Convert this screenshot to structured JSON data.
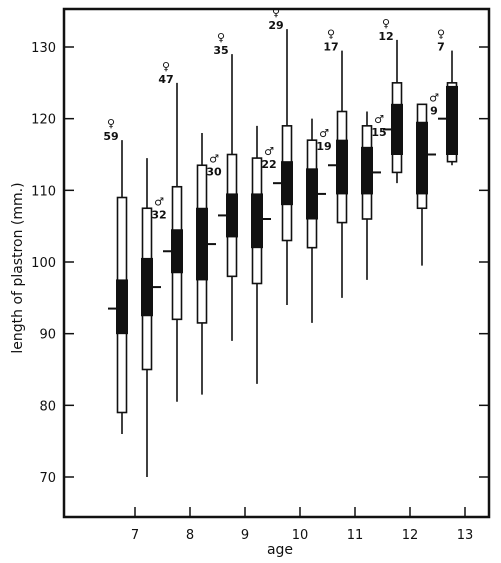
{
  "chart_data": {
    "type": "boxplot",
    "xlabel": "age",
    "ylabel": "length of plastron (mm.)",
    "ylim": [
      63,
      135
    ],
    "yticks": [
      70,
      80,
      90,
      100,
      110,
      120,
      130
    ],
    "xticks": [
      "7",
      "8",
      "9",
      "10",
      "11",
      "12",
      "13"
    ],
    "grid": false,
    "female_symbol": "♀",
    "male_symbol": "♂",
    "groups": [
      {
        "age": "7",
        "female": {
          "n": "59",
          "min": 76,
          "sd_low": 79,
          "se_low": 90,
          "mean": 93.5,
          "se_high": 97.5,
          "sd_high": 109,
          "max": 117
        },
        "male": {
          "n": "32",
          "min": 70,
          "sd_low": 85,
          "se_low": 92.5,
          "mean": 96.5,
          "se_high": 100.5,
          "sd_high": 107.5,
          "max": 114.5
        }
      },
      {
        "age": "8",
        "female": {
          "n": "47",
          "min": 80.5,
          "sd_low": 92,
          "se_low": 98.5,
          "mean": 101.5,
          "se_high": 104.5,
          "sd_high": 110.5,
          "max": 125
        },
        "male": {
          "n": "30",
          "min": 81.5,
          "sd_low": 91.5,
          "se_low": 97.5,
          "mean": 102.5,
          "se_high": 107.5,
          "sd_high": 113.5,
          "max": 118
        }
      },
      {
        "age": "9",
        "female": {
          "n": "35",
          "min": 89,
          "sd_low": 98,
          "se_low": 103.5,
          "mean": 106.5,
          "se_high": 109.5,
          "sd_high": 115,
          "max": 129
        },
        "male": {
          "n": "22",
          "min": 83,
          "sd_low": 97,
          "se_low": 102,
          "mean": 106,
          "se_high": 109.5,
          "sd_high": 114.5,
          "max": 119
        }
      },
      {
        "age": "10",
        "female": {
          "n": "29",
          "min": 94,
          "sd_low": 103,
          "se_low": 108,
          "mean": 111,
          "se_high": 114,
          "sd_high": 119,
          "max": 132.5
        },
        "male": {
          "n": "19",
          "min": 91.5,
          "sd_low": 102,
          "se_low": 106,
          "mean": 109.5,
          "se_high": 113,
          "sd_high": 117,
          "max": 120
        }
      },
      {
        "age": "11",
        "female": {
          "n": "17",
          "min": 95,
          "sd_low": 105.5,
          "se_low": 109.5,
          "mean": 113.5,
          "se_high": 117,
          "sd_high": 121,
          "max": 129.5
        },
        "male": {
          "n": "15",
          "min": 97.5,
          "sd_low": 106,
          "se_low": 109.5,
          "mean": 112.5,
          "se_high": 116,
          "sd_high": 119,
          "max": 121
        }
      },
      {
        "age": "12",
        "female": {
          "n": "12",
          "min": 111,
          "sd_low": 112.5,
          "se_low": 115,
          "mean": 118.5,
          "se_high": 122,
          "sd_high": 125,
          "max": 131
        },
        "male": {
          "n": "9",
          "min": 99.5,
          "sd_low": 107.5,
          "se_low": 109.5,
          "mean": 115,
          "se_high": 119.5,
          "sd_high": 122,
          "max": 122
        }
      },
      {
        "age": "13",
        "female": {
          "n": "7",
          "min": 113.5,
          "sd_low": 114,
          "se_low": 115,
          "mean": 120,
          "se_high": 124.5,
          "sd_high": 125,
          "max": 129.5
        }
      }
    ]
  }
}
